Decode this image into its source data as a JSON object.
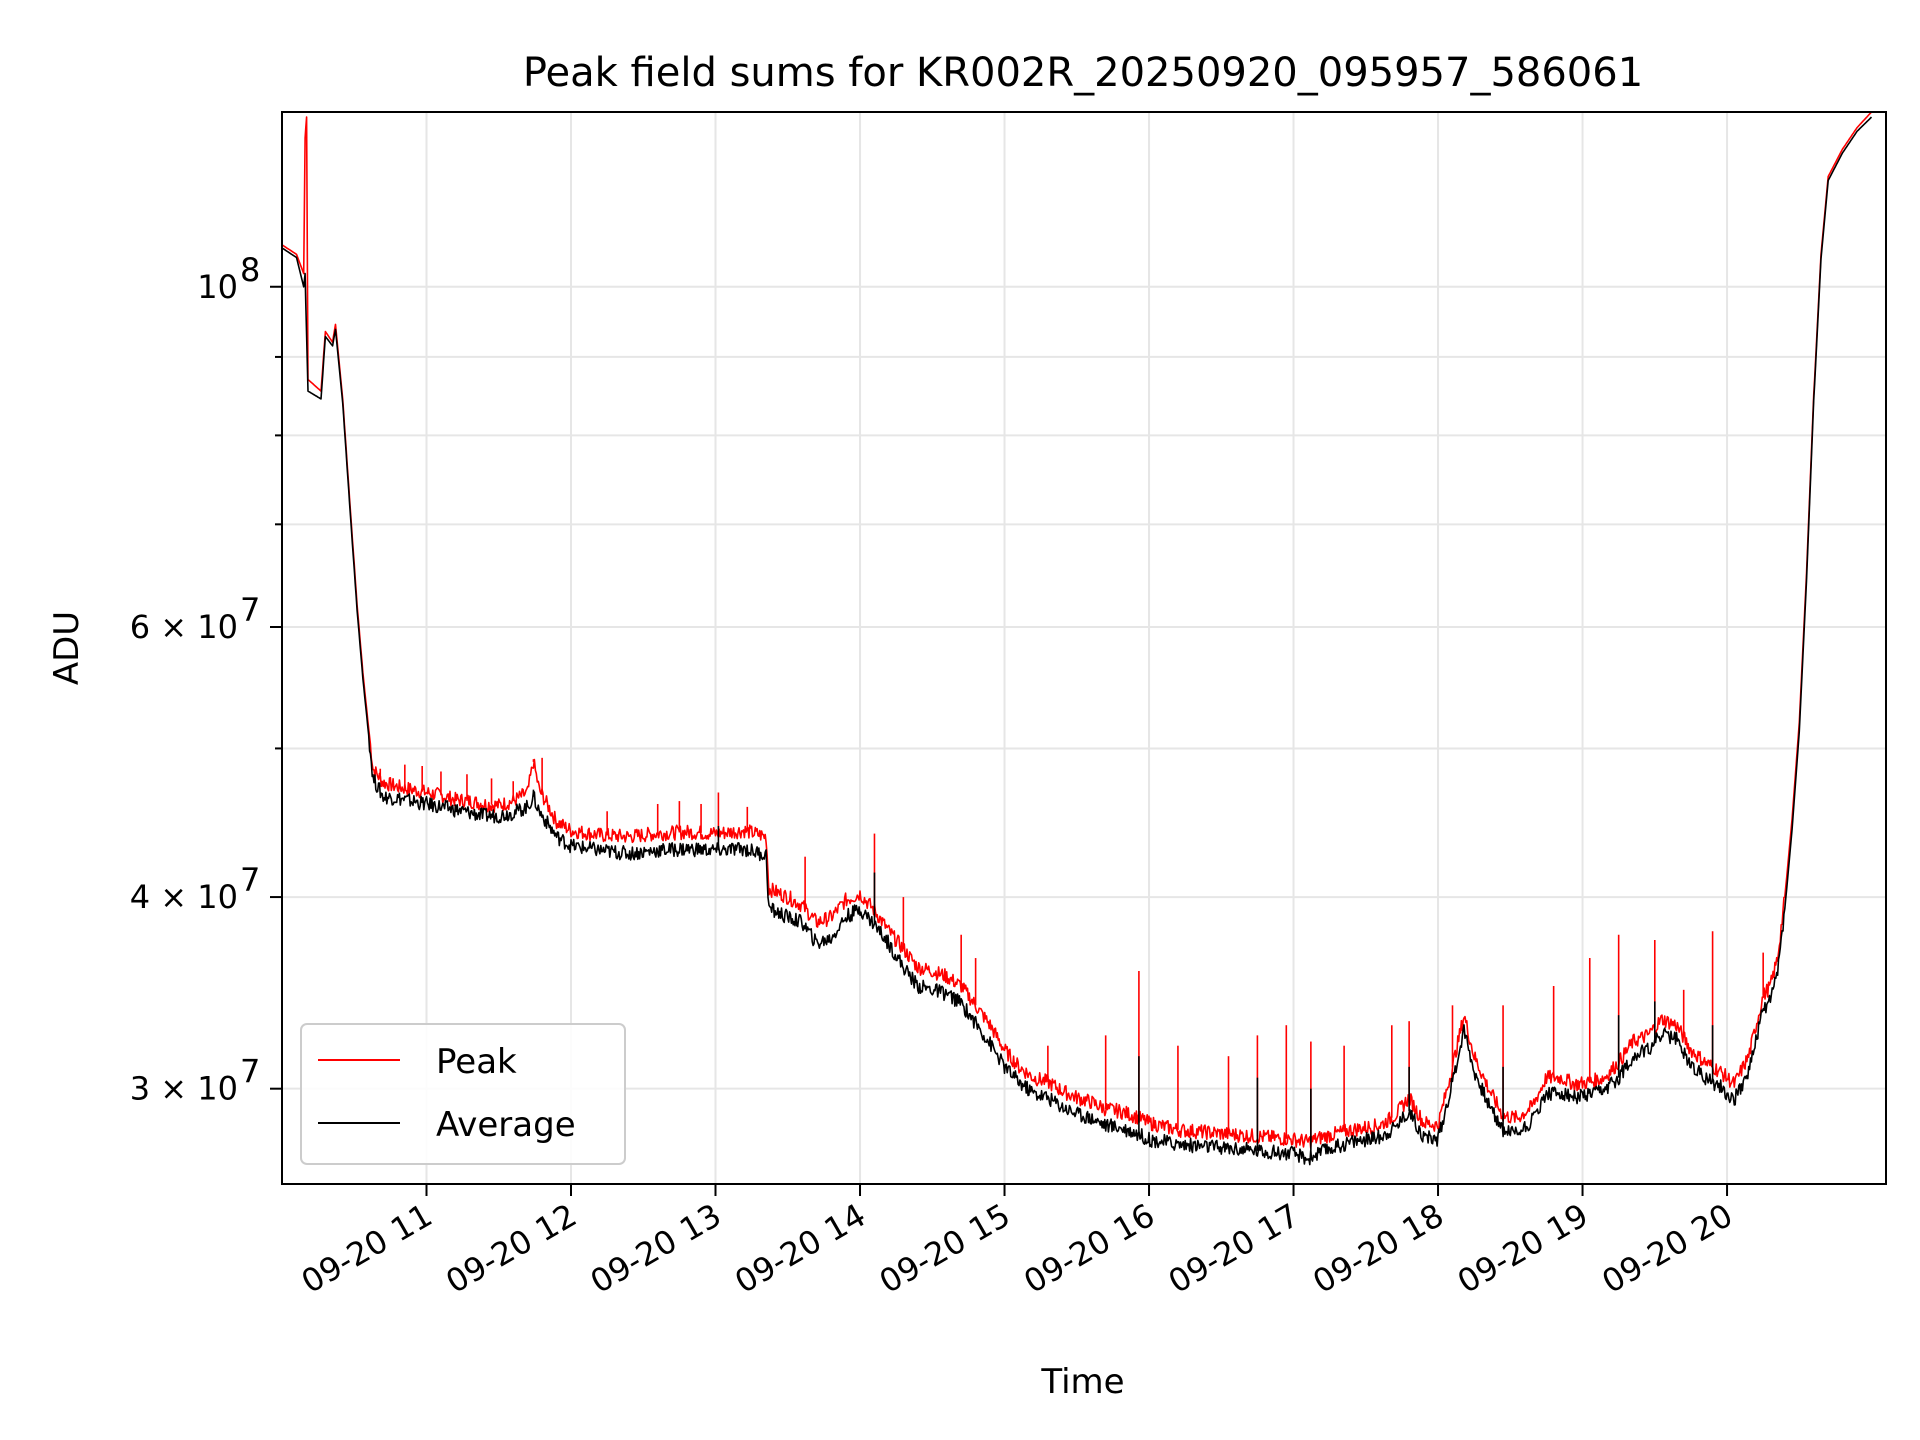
{
  "chart_data": {
    "type": "line",
    "title": "Peak field sums for KR002R_20250920_095957_586061",
    "xlabel": "Time",
    "ylabel": "ADU",
    "x_unit": "hours",
    "xlim": [
      10.0,
      21.1
    ],
    "ylim": [
      26000000,
      130000000
    ],
    "yscale": "log",
    "grid": true,
    "legend": {
      "position": "lower-left",
      "entries": [
        "Peak",
        "Average"
      ]
    },
    "x_ticks": [
      {
        "x": 11,
        "label": "09-20 11"
      },
      {
        "x": 12,
        "label": "09-20 12"
      },
      {
        "x": 13,
        "label": "09-20 13"
      },
      {
        "x": 14,
        "label": "09-20 14"
      },
      {
        "x": 15,
        "label": "09-20 15"
      },
      {
        "x": 16,
        "label": "09-20 16"
      },
      {
        "x": 17,
        "label": "09-20 17"
      },
      {
        "x": 18,
        "label": "09-20 18"
      },
      {
        "x": 19,
        "label": "09-20 19"
      },
      {
        "x": 20,
        "label": "09-20 20"
      }
    ],
    "y_ticks": [
      {
        "y": 30000000,
        "base": "3 × 10",
        "exp": "7"
      },
      {
        "y": 40000000,
        "base": "4 × 10",
        "exp": "7"
      },
      {
        "y": 60000000,
        "base": "6 × 10",
        "exp": "7"
      },
      {
        "y": 100000000,
        "base": "10",
        "exp": "8"
      }
    ],
    "y_minor_ticks": [
      50000000,
      70000000,
      80000000,
      90000000
    ],
    "series": [
      {
        "name": "Peak",
        "color": "#ff0000",
        "points": [
          [
            10.0,
            106500000
          ],
          [
            10.1,
            105000000
          ],
          [
            10.15,
            102000000
          ],
          [
            10.16,
            125000000
          ],
          [
            10.17,
            129000000
          ],
          [
            10.18,
            87000000
          ],
          [
            10.27,
            85500000
          ],
          [
            10.3,
            93500000
          ],
          [
            10.35,
            92000000
          ],
          [
            10.37,
            94500000
          ],
          [
            10.42,
            84500000
          ],
          [
            10.48,
            70000000
          ],
          [
            10.52,
            62000000
          ],
          [
            10.56,
            56000000
          ],
          [
            10.6,
            51500000
          ],
          [
            10.63,
            48500000
          ],
          [
            10.7,
            47500000
          ],
          [
            10.8,
            47200000
          ],
          [
            10.9,
            47000000
          ],
          [
            11.0,
            46800000
          ],
          [
            11.1,
            46600000
          ],
          [
            11.2,
            46300000
          ],
          [
            11.3,
            46200000
          ],
          [
            11.4,
            46000000
          ],
          [
            11.5,
            45900000
          ],
          [
            11.6,
            46200000
          ],
          [
            11.7,
            46800000
          ],
          [
            11.74,
            49000000
          ],
          [
            11.78,
            47000000
          ],
          [
            11.9,
            44800000
          ],
          [
            12.0,
            44200000
          ],
          [
            12.2,
            43900000
          ],
          [
            12.4,
            43800000
          ],
          [
            12.6,
            44000000
          ],
          [
            12.8,
            44100000
          ],
          [
            13.0,
            44000000
          ],
          [
            13.2,
            44200000
          ],
          [
            13.35,
            43800000
          ],
          [
            13.37,
            40500000
          ],
          [
            13.5,
            40000000
          ],
          [
            13.6,
            39500000
          ],
          [
            13.7,
            38500000
          ],
          [
            13.8,
            38800000
          ],
          [
            13.9,
            39800000
          ],
          [
            14.0,
            40200000
          ],
          [
            14.1,
            39200000
          ],
          [
            14.2,
            38000000
          ],
          [
            14.3,
            37000000
          ],
          [
            14.4,
            36000000
          ],
          [
            14.5,
            35800000
          ],
          [
            14.6,
            35500000
          ],
          [
            14.7,
            35000000
          ],
          [
            14.8,
            34000000
          ],
          [
            14.9,
            33000000
          ],
          [
            15.0,
            31800000
          ],
          [
            15.1,
            31000000
          ],
          [
            15.2,
            30500000
          ],
          [
            15.3,
            30300000
          ],
          [
            15.4,
            29900000
          ],
          [
            15.5,
            29600000
          ],
          [
            15.6,
            29400000
          ],
          [
            15.7,
            29100000
          ],
          [
            15.8,
            29000000
          ],
          [
            15.9,
            28800000
          ],
          [
            16.0,
            28500000
          ],
          [
            16.2,
            28200000
          ],
          [
            16.4,
            28100000
          ],
          [
            16.6,
            28000000
          ],
          [
            16.8,
            27900000
          ],
          [
            17.0,
            27800000
          ],
          [
            17.1,
            27700000
          ],
          [
            17.2,
            27900000
          ],
          [
            17.4,
            28200000
          ],
          [
            17.6,
            28400000
          ],
          [
            17.7,
            28800000
          ],
          [
            17.8,
            29600000
          ],
          [
            17.9,
            28500000
          ],
          [
            18.0,
            28400000
          ],
          [
            18.1,
            31000000
          ],
          [
            18.18,
            33500000
          ],
          [
            18.25,
            31500000
          ],
          [
            18.35,
            30000000
          ],
          [
            18.45,
            28800000
          ],
          [
            18.55,
            28700000
          ],
          [
            18.65,
            29200000
          ],
          [
            18.75,
            30500000
          ],
          [
            18.85,
            30500000
          ],
          [
            18.95,
            30200000
          ],
          [
            19.05,
            30300000
          ],
          [
            19.15,
            30500000
          ],
          [
            19.25,
            31200000
          ],
          [
            19.35,
            32200000
          ],
          [
            19.45,
            32500000
          ],
          [
            19.55,
            33300000
          ],
          [
            19.65,
            33000000
          ],
          [
            19.75,
            31800000
          ],
          [
            19.85,
            31200000
          ],
          [
            19.95,
            30800000
          ],
          [
            20.05,
            30200000
          ],
          [
            20.15,
            31500000
          ],
          [
            20.25,
            34500000
          ],
          [
            20.3,
            35000000
          ],
          [
            20.35,
            36500000
          ],
          [
            20.4,
            40000000
          ],
          [
            20.45,
            45000000
          ],
          [
            20.5,
            52000000
          ],
          [
            20.55,
            65000000
          ],
          [
            20.6,
            85000000
          ],
          [
            20.65,
            105000000
          ],
          [
            20.7,
            118000000
          ],
          [
            20.8,
            123000000
          ],
          [
            20.9,
            127000000
          ],
          [
            21.0,
            130000000
          ]
        ],
        "spikes": [
          [
            10.68,
            48500000
          ],
          [
            10.85,
            48800000
          ],
          [
            10.97,
            48700000
          ],
          [
            11.1,
            48300000
          ],
          [
            11.28,
            48100000
          ],
          [
            11.45,
            47800000
          ],
          [
            11.6,
            47600000
          ],
          [
            11.74,
            49200000
          ],
          [
            11.8,
            49300000
          ],
          [
            12.25,
            45500000
          ],
          [
            12.6,
            46000000
          ],
          [
            12.75,
            46200000
          ],
          [
            12.9,
            46000000
          ],
          [
            13.02,
            46800000
          ],
          [
            13.22,
            45800000
          ],
          [
            13.62,
            42500000
          ],
          [
            14.1,
            44000000
          ],
          [
            14.3,
            40000000
          ],
          [
            14.7,
            37800000
          ],
          [
            14.8,
            36500000
          ],
          [
            15.3,
            32000000
          ],
          [
            15.7,
            32500000
          ],
          [
            15.93,
            35800000
          ],
          [
            16.2,
            32000000
          ],
          [
            16.55,
            31500000
          ],
          [
            16.75,
            32500000
          ],
          [
            16.95,
            33000000
          ],
          [
            17.12,
            32200000
          ],
          [
            17.35,
            32000000
          ],
          [
            17.68,
            33000000
          ],
          [
            17.8,
            33200000
          ],
          [
            18.1,
            34000000
          ],
          [
            18.45,
            34000000
          ],
          [
            18.8,
            35000000
          ],
          [
            19.05,
            36500000
          ],
          [
            19.25,
            37800000
          ],
          [
            19.5,
            37500000
          ],
          [
            19.7,
            34800000
          ],
          [
            19.9,
            38000000
          ],
          [
            20.25,
            36800000
          ]
        ]
      },
      {
        "name": "Average",
        "color": "#000000",
        "points": [
          [
            10.0,
            106000000
          ],
          [
            10.1,
            104500000
          ],
          [
            10.15,
            100000000
          ],
          [
            10.16,
            102000000
          ],
          [
            10.17,
            93000000
          ],
          [
            10.18,
            85500000
          ],
          [
            10.27,
            84500000
          ],
          [
            10.3,
            92800000
          ],
          [
            10.35,
            91500000
          ],
          [
            10.37,
            93800000
          ],
          [
            10.42,
            84000000
          ],
          [
            10.48,
            69500000
          ],
          [
            10.52,
            61500000
          ],
          [
            10.56,
            55500000
          ],
          [
            10.6,
            51000000
          ],
          [
            10.63,
            47800000
          ],
          [
            10.7,
            46500000
          ],
          [
            10.8,
            46400000
          ],
          [
            10.9,
            46200000
          ],
          [
            11.0,
            46000000
          ],
          [
            11.1,
            45800000
          ],
          [
            11.2,
            45600000
          ],
          [
            11.3,
            45400000
          ],
          [
            11.4,
            45200000
          ],
          [
            11.5,
            45200000
          ],
          [
            11.6,
            45400000
          ],
          [
            11.7,
            45800000
          ],
          [
            11.74,
            46500000
          ],
          [
            11.78,
            45500000
          ],
          [
            11.9,
            43800000
          ],
          [
            12.0,
            43200000
          ],
          [
            12.2,
            42900000
          ],
          [
            12.4,
            42700000
          ],
          [
            12.6,
            42900000
          ],
          [
            12.8,
            43000000
          ],
          [
            13.0,
            42900000
          ],
          [
            13.2,
            43000000
          ],
          [
            13.35,
            42600000
          ],
          [
            13.37,
            39300000
          ],
          [
            13.5,
            38800000
          ],
          [
            13.6,
            38500000
          ],
          [
            13.7,
            37300000
          ],
          [
            13.8,
            37600000
          ],
          [
            13.9,
            38800000
          ],
          [
            14.0,
            39300000
          ],
          [
            14.1,
            38400000
          ],
          [
            14.2,
            37300000
          ],
          [
            14.3,
            36000000
          ],
          [
            14.4,
            35000000
          ],
          [
            14.5,
            34800000
          ],
          [
            14.6,
            34600000
          ],
          [
            14.7,
            34100000
          ],
          [
            14.8,
            33100000
          ],
          [
            14.9,
            32100000
          ],
          [
            15.0,
            31000000
          ],
          [
            15.1,
            30300000
          ],
          [
            15.2,
            29800000
          ],
          [
            15.3,
            29600000
          ],
          [
            15.4,
            29200000
          ],
          [
            15.5,
            28900000
          ],
          [
            15.6,
            28700000
          ],
          [
            15.7,
            28400000
          ],
          [
            15.8,
            28300000
          ],
          [
            15.9,
            28100000
          ],
          [
            16.0,
            27800000
          ],
          [
            16.2,
            27600000
          ],
          [
            16.4,
            27500000
          ],
          [
            16.6,
            27400000
          ],
          [
            16.8,
            27300000
          ],
          [
            17.0,
            27200000
          ],
          [
            17.1,
            27000000
          ],
          [
            17.2,
            27300000
          ],
          [
            17.4,
            27700000
          ],
          [
            17.6,
            27900000
          ],
          [
            17.7,
            28300000
          ],
          [
            17.8,
            29000000
          ],
          [
            17.9,
            27900000
          ],
          [
            18.0,
            27800000
          ],
          [
            18.1,
            30300000
          ],
          [
            18.18,
            32800000
          ],
          [
            18.25,
            30800000
          ],
          [
            18.35,
            29300000
          ],
          [
            18.45,
            28200000
          ],
          [
            18.55,
            28100000
          ],
          [
            18.65,
            28600000
          ],
          [
            18.75,
            29800000
          ],
          [
            18.85,
            29800000
          ],
          [
            18.95,
            29600000
          ],
          [
            19.05,
            29700000
          ],
          [
            19.15,
            29900000
          ],
          [
            19.25,
            30500000
          ],
          [
            19.35,
            31500000
          ],
          [
            19.45,
            31800000
          ],
          [
            19.55,
            32600000
          ],
          [
            19.65,
            32300000
          ],
          [
            19.75,
            31100000
          ],
          [
            19.85,
            30500000
          ],
          [
            19.95,
            30100000
          ],
          [
            20.05,
            29500000
          ],
          [
            20.15,
            30800000
          ],
          [
            20.25,
            33800000
          ],
          [
            20.3,
            34300000
          ],
          [
            20.35,
            35800000
          ],
          [
            20.4,
            39300000
          ],
          [
            20.45,
            44300000
          ],
          [
            20.5,
            51300000
          ],
          [
            20.55,
            64300000
          ],
          [
            20.6,
            84300000
          ],
          [
            20.65,
            104300000
          ],
          [
            20.7,
            117300000
          ],
          [
            20.8,
            122300000
          ],
          [
            20.9,
            126300000
          ],
          [
            21.0,
            129000000
          ]
        ],
        "spikes": [
          [
            11.74,
            47000000
          ],
          [
            13.02,
            44500000
          ],
          [
            14.1,
            41500000
          ],
          [
            15.93,
            31500000
          ],
          [
            16.75,
            30500000
          ],
          [
            17.12,
            30000000
          ],
          [
            17.8,
            31000000
          ],
          [
            18.45,
            31000000
          ],
          [
            19.25,
            33500000
          ],
          [
            19.5,
            34200000
          ],
          [
            19.9,
            33000000
          ]
        ]
      }
    ]
  }
}
